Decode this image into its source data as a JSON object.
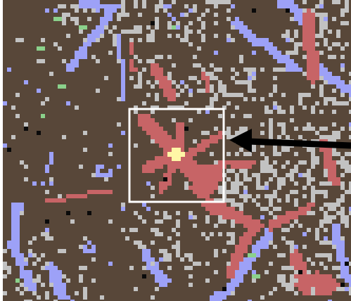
{
  "map": {
    "palette": {
      "ground": "#584739",
      "built_red": "#c76466",
      "water_blue": "#9da1f7",
      "bare_gray": "#c2c2c2",
      "vegetation_green": "#8bd18b",
      "void_black": "#0a0a0a",
      "hotspot_yellow": "#fff6a6"
    },
    "annotations": {
      "highlight_box_color": "#ffffff",
      "pointer_arrow_color": "#000000"
    }
  }
}
